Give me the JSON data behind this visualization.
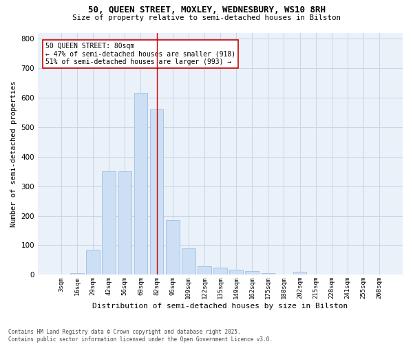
{
  "title_line1": "50, QUEEN STREET, MOXLEY, WEDNESBURY, WS10 8RH",
  "title_line2": "Size of property relative to semi-detached houses in Bilston",
  "xlabel": "Distribution of semi-detached houses by size in Bilston",
  "ylabel": "Number of semi-detached properties",
  "footnote": "Contains HM Land Registry data © Crown copyright and database right 2025.\nContains public sector information licensed under the Open Government Licence v3.0.",
  "bar_labels": [
    "3sqm",
    "16sqm",
    "29sqm",
    "42sqm",
    "56sqm",
    "69sqm",
    "82sqm",
    "95sqm",
    "109sqm",
    "122sqm",
    "135sqm",
    "149sqm",
    "162sqm",
    "175sqm",
    "188sqm",
    "202sqm",
    "215sqm",
    "228sqm",
    "241sqm",
    "255sqm",
    "268sqm"
  ],
  "bar_values": [
    2,
    5,
    85,
    350,
    350,
    615,
    560,
    185,
    90,
    30,
    25,
    18,
    12,
    5,
    0,
    10,
    0,
    0,
    0,
    0,
    2
  ],
  "bar_color": "#ccdff5",
  "bar_edge_color": "#a0bfdc",
  "grid_color": "#c5d5e8",
  "background_color": "#eaf1f9",
  "vline_x_index": 6,
  "vline_color": "#cc0000",
  "annotation_text": "50 QUEEN STREET: 80sqm\n← 47% of semi-detached houses are smaller (918)\n51% of semi-detached houses are larger (993) →",
  "annotation_box_color": "#ffffff",
  "annotation_box_edge": "#cc0000",
  "ylim": [
    0,
    820
  ],
  "yticks": [
    0,
    100,
    200,
    300,
    400,
    500,
    600,
    700,
    800
  ]
}
